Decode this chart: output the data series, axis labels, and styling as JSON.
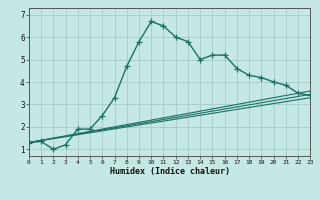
{
  "xlabel": "Humidex (Indice chaleur)",
  "bg_color": "#c5e8e4",
  "grid_color": "#aacfcb",
  "line_color": "#1a7065",
  "xlim": [
    0,
    23
  ],
  "ylim": [
    0.7,
    7.3
  ],
  "xticks": [
    0,
    1,
    2,
    3,
    4,
    5,
    6,
    7,
    8,
    9,
    10,
    11,
    12,
    13,
    14,
    15,
    16,
    17,
    18,
    19,
    20,
    21,
    22,
    23
  ],
  "yticks": [
    1,
    2,
    3,
    4,
    5,
    6,
    7
  ],
  "main_x": [
    0,
    1,
    2,
    3,
    4,
    5,
    6,
    7,
    8,
    9,
    10,
    11,
    12,
    13,
    14,
    15,
    16,
    17,
    18,
    19,
    20,
    21,
    22,
    23
  ],
  "main_y": [
    1.3,
    1.35,
    1.0,
    1.2,
    1.9,
    1.9,
    2.5,
    3.3,
    4.7,
    5.8,
    6.7,
    6.5,
    6.0,
    5.8,
    5.0,
    5.2,
    5.2,
    4.6,
    4.3,
    4.2,
    4.0,
    3.85,
    3.5,
    3.4
  ],
  "flat_lines": [
    [
      1.3,
      3.6
    ],
    [
      1.3,
      3.45
    ],
    [
      1.3,
      3.3
    ]
  ]
}
